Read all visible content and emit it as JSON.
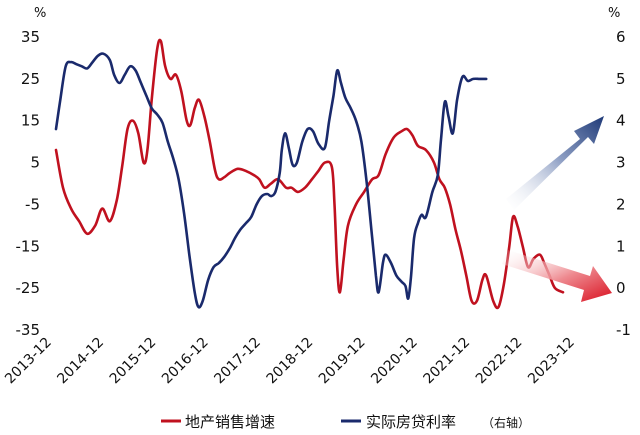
{
  "chart_data": {
    "type": "line",
    "left_axis": {
      "unit": "%",
      "ticks": [
        35,
        25,
        15,
        5,
        -5,
        -15,
        -25,
        -35
      ],
      "ylim": [
        -35,
        35
      ]
    },
    "right_axis": {
      "unit": "%",
      "ticks": [
        6,
        5,
        4,
        3,
        2,
        1,
        0,
        -1
      ],
      "ylim": [
        -1,
        6
      ]
    },
    "x_ticks": [
      "2013-12",
      "2014-12",
      "2015-12",
      "2016-12",
      "2017-12",
      "2018-12",
      "2019-12",
      "2020-12",
      "2021-12",
      "2022-12",
      "2023-12"
    ],
    "x_range": [
      2013.92,
      2024.0
    ],
    "series": [
      {
        "name": "地产销售增速",
        "axis": "left",
        "color": "#c0111f",
        "points": [
          [
            2013.92,
            8
          ],
          [
            2014.05,
            -1
          ],
          [
            2014.2,
            -6
          ],
          [
            2014.35,
            -9
          ],
          [
            2014.5,
            -12
          ],
          [
            2014.65,
            -10
          ],
          [
            2014.78,
            -6
          ],
          [
            2014.92,
            -9
          ],
          [
            2015.05,
            -4
          ],
          [
            2015.15,
            4
          ],
          [
            2015.25,
            13
          ],
          [
            2015.35,
            15
          ],
          [
            2015.45,
            12
          ],
          [
            2015.55,
            5
          ],
          [
            2015.62,
            8
          ],
          [
            2015.7,
            20
          ],
          [
            2015.8,
            32
          ],
          [
            2015.87,
            34
          ],
          [
            2015.95,
            28
          ],
          [
            2016.05,
            25
          ],
          [
            2016.15,
            26
          ],
          [
            2016.25,
            22
          ],
          [
            2016.35,
            15
          ],
          [
            2016.42,
            14
          ],
          [
            2016.5,
            18
          ],
          [
            2016.58,
            20
          ],
          [
            2016.68,
            16
          ],
          [
            2016.78,
            10
          ],
          [
            2016.88,
            3
          ],
          [
            2016.95,
            1
          ],
          [
            2017.05,
            1.5
          ],
          [
            2017.15,
            2.5
          ],
          [
            2017.3,
            3.5
          ],
          [
            2017.45,
            3
          ],
          [
            2017.6,
            2
          ],
          [
            2017.7,
            1
          ],
          [
            2017.8,
            -1
          ],
          [
            2017.92,
            0
          ],
          [
            2018.05,
            1
          ],
          [
            2018.2,
            -1
          ],
          [
            2018.3,
            -1
          ],
          [
            2018.42,
            -2
          ],
          [
            2018.55,
            -1
          ],
          [
            2018.68,
            1
          ],
          [
            2018.8,
            3
          ],
          [
            2018.92,
            5
          ],
          [
            2019.05,
            4
          ],
          [
            2019.1,
            -5
          ],
          [
            2019.15,
            -20
          ],
          [
            2019.2,
            -26
          ],
          [
            2019.27,
            -18
          ],
          [
            2019.35,
            -10
          ],
          [
            2019.5,
            -5
          ],
          [
            2019.65,
            -2
          ],
          [
            2019.8,
            1
          ],
          [
            2019.92,
            2
          ],
          [
            2020.05,
            7
          ],
          [
            2020.2,
            11
          ],
          [
            2020.35,
            12.5
          ],
          [
            2020.45,
            13
          ],
          [
            2020.55,
            11.5
          ],
          [
            2020.65,
            9
          ],
          [
            2020.8,
            8
          ],
          [
            2020.95,
            5
          ],
          [
            2021.05,
            1
          ],
          [
            2021.15,
            -1
          ],
          [
            2021.25,
            -5
          ],
          [
            2021.35,
            -11
          ],
          [
            2021.45,
            -16
          ],
          [
            2021.55,
            -22
          ],
          [
            2021.65,
            -28
          ],
          [
            2021.75,
            -28
          ],
          [
            2021.85,
            -23
          ],
          [
            2021.92,
            -22
          ],
          [
            2022.05,
            -28
          ],
          [
            2022.15,
            -29.5
          ],
          [
            2022.25,
            -24
          ],
          [
            2022.35,
            -15
          ],
          [
            2022.42,
            -8
          ],
          [
            2022.5,
            -10
          ],
          [
            2022.6,
            -15
          ],
          [
            2022.7,
            -20
          ],
          [
            2022.8,
            -18
          ],
          [
            2022.92,
            -17
          ],
          [
            2023.0,
            -19
          ],
          [
            2023.1,
            -22
          ],
          [
            2023.2,
            -25
          ],
          [
            2023.35,
            -26
          ]
        ]
      },
      {
        "name": "实际房贷利率",
        "suffix": "（右轴）",
        "axis": "right",
        "color": "#1a2a6c",
        "points": [
          [
            2013.92,
            3.8
          ],
          [
            2014.0,
            4.5
          ],
          [
            2014.1,
            5.3
          ],
          [
            2014.2,
            5.4
          ],
          [
            2014.3,
            5.35
          ],
          [
            2014.4,
            5.3
          ],
          [
            2014.5,
            5.25
          ],
          [
            2014.6,
            5.4
          ],
          [
            2014.7,
            5.55
          ],
          [
            2014.8,
            5.6
          ],
          [
            2014.92,
            5.45
          ],
          [
            2015.0,
            5.1
          ],
          [
            2015.1,
            4.9
          ],
          [
            2015.2,
            5.1
          ],
          [
            2015.3,
            5.3
          ],
          [
            2015.4,
            5.2
          ],
          [
            2015.5,
            4.9
          ],
          [
            2015.6,
            4.6
          ],
          [
            2015.7,
            4.3
          ],
          [
            2015.8,
            4.15
          ],
          [
            2015.9,
            3.95
          ],
          [
            2016.0,
            3.5
          ],
          [
            2016.1,
            3.1
          ],
          [
            2016.2,
            2.6
          ],
          [
            2016.3,
            1.8
          ],
          [
            2016.4,
            0.8
          ],
          [
            2016.5,
            -0.1
          ],
          [
            2016.57,
            -0.45
          ],
          [
            2016.65,
            -0.3
          ],
          [
            2016.75,
            0.2
          ],
          [
            2016.85,
            0.5
          ],
          [
            2016.95,
            0.6
          ],
          [
            2017.05,
            0.75
          ],
          [
            2017.15,
            0.95
          ],
          [
            2017.25,
            1.2
          ],
          [
            2017.35,
            1.4
          ],
          [
            2017.45,
            1.55
          ],
          [
            2017.55,
            1.7
          ],
          [
            2017.65,
            2.0
          ],
          [
            2017.75,
            2.2
          ],
          [
            2017.85,
            2.25
          ],
          [
            2017.92,
            2.2
          ],
          [
            2018.0,
            2.3
          ],
          [
            2018.08,
            2.75
          ],
          [
            2018.12,
            3.3
          ],
          [
            2018.18,
            3.7
          ],
          [
            2018.25,
            3.35
          ],
          [
            2018.32,
            2.95
          ],
          [
            2018.4,
            3.0
          ],
          [
            2018.5,
            3.5
          ],
          [
            2018.6,
            3.8
          ],
          [
            2018.7,
            3.75
          ],
          [
            2018.8,
            3.45
          ],
          [
            2018.92,
            3.35
          ],
          [
            2019.0,
            4.0
          ],
          [
            2019.08,
            4.6
          ],
          [
            2019.15,
            5.2
          ],
          [
            2019.22,
            4.9
          ],
          [
            2019.3,
            4.55
          ],
          [
            2019.4,
            4.3
          ],
          [
            2019.5,
            4.0
          ],
          [
            2019.6,
            3.5
          ],
          [
            2019.7,
            2.5
          ],
          [
            2019.8,
            1.2
          ],
          [
            2019.87,
            0.3
          ],
          [
            2019.92,
            -0.1
          ],
          [
            2020.0,
            0.6
          ],
          [
            2020.05,
            0.8
          ],
          [
            2020.15,
            0.6
          ],
          [
            2020.25,
            0.3
          ],
          [
            2020.35,
            0.15
          ],
          [
            2020.42,
            0.05
          ],
          [
            2020.47,
            -0.25
          ],
          [
            2020.52,
            0.25
          ],
          [
            2020.58,
            1.2
          ],
          [
            2020.65,
            1.55
          ],
          [
            2020.72,
            1.75
          ],
          [
            2020.8,
            1.7
          ],
          [
            2020.92,
            2.3
          ],
          [
            2021.02,
            2.7
          ],
          [
            2021.08,
            3.55
          ],
          [
            2021.15,
            4.45
          ],
          [
            2021.22,
            4.1
          ],
          [
            2021.3,
            3.7
          ],
          [
            2021.38,
            4.5
          ],
          [
            2021.48,
            5.05
          ],
          [
            2021.58,
            4.95
          ],
          [
            2021.68,
            5.0
          ],
          [
            2021.8,
            5.0
          ],
          [
            2021.92,
            5.0
          ]
        ]
      }
    ],
    "annotations": [
      {
        "type": "arrow",
        "direction": "up",
        "color": "#1f3a78"
      },
      {
        "type": "arrow",
        "direction": "down",
        "color": "#d9101f"
      }
    ]
  }
}
